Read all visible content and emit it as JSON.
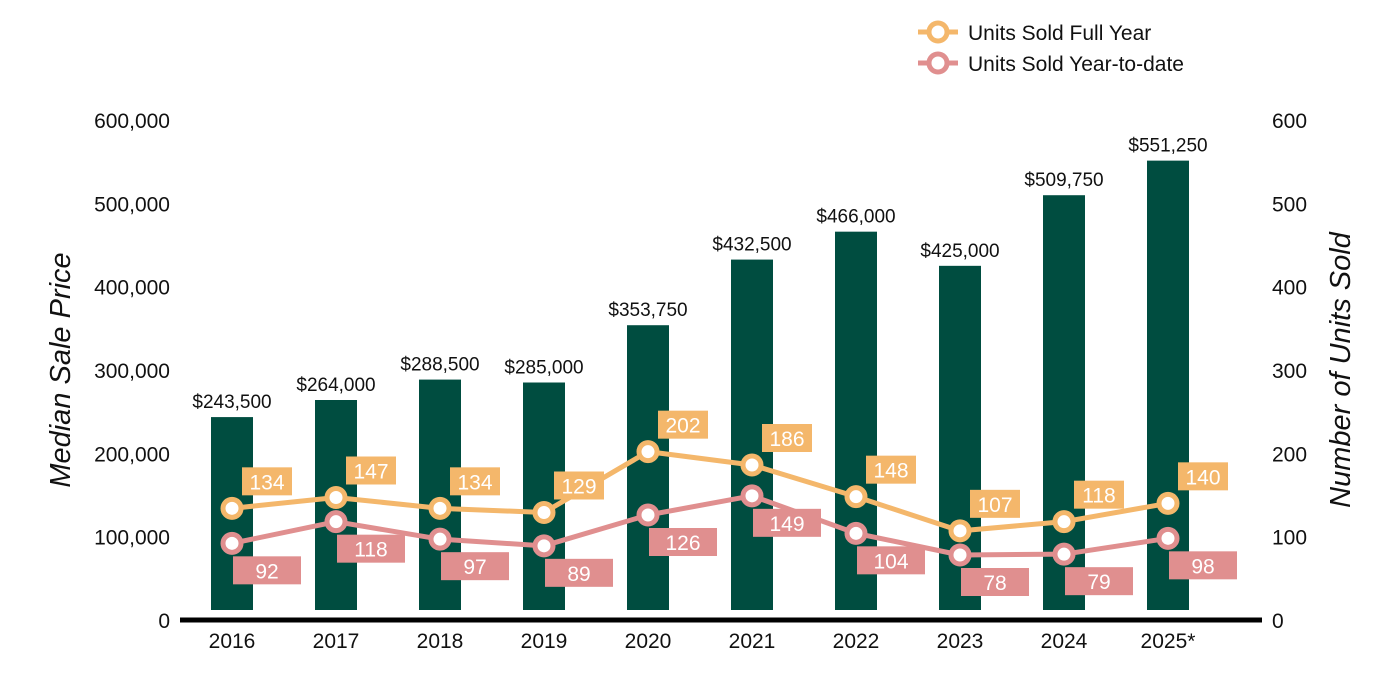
{
  "chart_data": {
    "type": "bar",
    "categories": [
      "2016",
      "2017",
      "2018",
      "2019",
      "2020",
      "2021",
      "2022",
      "2023",
      "2024",
      "2025*"
    ],
    "bar_series": {
      "values": [
        243500,
        264000,
        288500,
        285000,
        353750,
        432500,
        466000,
        425000,
        509750,
        551250
      ],
      "labels": [
        "$243,500",
        "$264,000",
        "$288,500",
        "$285,000",
        "$353,750",
        "$432,500",
        "$466,000",
        "$425,000",
        "$509,750",
        "$551,250"
      ],
      "color": "#004D40"
    },
    "line_series": [
      {
        "name": "Units Sold Full Year",
        "values": [
          134,
          147,
          134,
          129,
          202,
          186,
          148,
          107,
          118,
          140
        ],
        "color": "#F4B76B",
        "axis": "right"
      },
      {
        "name": "Units Sold Year-to-date",
        "values": [
          92,
          118,
          97,
          89,
          126,
          149,
          104,
          78,
          79,
          98
        ],
        "color": "#E08F8F",
        "axis": "right"
      }
    ],
    "ylabel": "Median Sale Price",
    "ylabel_right": "Number of Units Sold",
    "ylim": [
      0,
      600000
    ],
    "ylim_right": [
      0,
      600
    ],
    "yticks": [
      "0",
      "100,000",
      "200,000",
      "300,000",
      "400,000",
      "500,000",
      "600,000"
    ],
    "yticks_right": [
      "0",
      "100",
      "200",
      "300",
      "400",
      "500",
      "600"
    ],
    "grid": false,
    "legend_position": "top-right"
  }
}
